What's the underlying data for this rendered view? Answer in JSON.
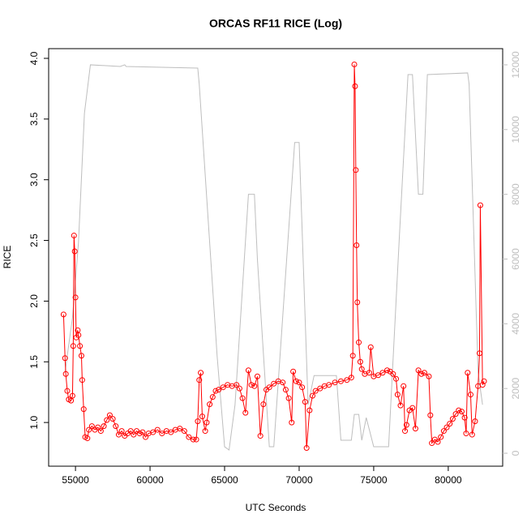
{
  "chart_data": {
    "type": "line",
    "title": "ORCAS RF11 RICE (Log)",
    "x_label": "UTC Seconds",
    "y_label": "RICE",
    "xlim": [
      53200,
      83650
    ],
    "xticks": [
      55000,
      60000,
      65000,
      70000,
      75000,
      80000
    ],
    "ylim": [
      0.64,
      4.08
    ],
    "yticks": [
      {
        "value": 1,
        "label": "1.0"
      },
      {
        "value": 1.5,
        "label": "1.5"
      },
      {
        "value": 2,
        "label": "2.0"
      },
      {
        "value": 2.5,
        "label": "2.5"
      },
      {
        "value": 3,
        "label": "3.0"
      },
      {
        "value": 3.5,
        "label": "3.5"
      },
      {
        "value": 4,
        "label": "4.0"
      }
    ],
    "y2lim": [
      -400,
      12500
    ],
    "y2ticks": [
      0,
      2000,
      4000,
      6000,
      8000,
      10000,
      12000
    ],
    "y2_color": "#bebebe",
    "series": [
      {
        "color": "#ff0000",
        "markers": true,
        "x": [
          54200,
          54300,
          54350,
          54450,
          54550,
          54700,
          54800,
          54850,
          54900,
          54950,
          55000,
          55050,
          55150,
          55200,
          55300,
          55400,
          55450,
          55550,
          55650,
          55800,
          55900,
          56100,
          56300,
          56500,
          56700,
          56900,
          57100,
          57300,
          57500,
          57700,
          57900,
          58100,
          58300,
          58500,
          58700,
          58900,
          59100,
          59300,
          59500,
          59700,
          59900,
          60200,
          60500,
          60800,
          61100,
          61400,
          61700,
          62000,
          62300,
          62600,
          62900,
          63100,
          63200,
          63300,
          63400,
          63500,
          63700,
          63800,
          64000,
          64200,
          64400,
          64600,
          64900,
          65200,
          65500,
          65800,
          66000,
          66200,
          66400,
          66600,
          66800,
          67000,
          67200,
          67400,
          67600,
          67800,
          68000,
          68300,
          68600,
          68900,
          69100,
          69300,
          69500,
          69600,
          69800,
          70000,
          70200,
          70400,
          70500,
          70700,
          70900,
          71100,
          71400,
          71700,
          72000,
          72400,
          72800,
          73200,
          73500,
          73600,
          73700,
          73750,
          73800,
          73850,
          73900,
          74000,
          74100,
          74200,
          74400,
          74700,
          74800,
          75000,
          75300,
          75600,
          75900,
          76100,
          76300,
          76500,
          76600,
          76800,
          77000,
          77100,
          77200,
          77400,
          77600,
          77800,
          78000,
          78200,
          78400,
          78700,
          78800,
          78900,
          79100,
          79300,
          79500,
          79700,
          79900,
          80100,
          80300,
          80500,
          80700,
          80900,
          81100,
          81200,
          81300,
          81500,
          81600,
          81800,
          82000,
          82100,
          82150,
          82300,
          82400
        ],
        "values": [
          1.89,
          1.53,
          1.4,
          1.26,
          1.19,
          1.18,
          1.22,
          1.63,
          2.54,
          2.41,
          2.03,
          1.7,
          1.76,
          1.72,
          1.63,
          1.55,
          1.35,
          1.11,
          0.88,
          0.87,
          0.94,
          0.97,
          0.94,
          0.96,
          0.93,
          0.97,
          1.02,
          1.06,
          1.03,
          0.97,
          0.9,
          0.93,
          0.89,
          0.91,
          0.93,
          0.9,
          0.93,
          0.91,
          0.92,
          0.88,
          0.91,
          0.92,
          0.94,
          0.91,
          0.93,
          0.92,
          0.94,
          0.95,
          0.93,
          0.88,
          0.86,
          0.86,
          1.01,
          1.35,
          1.41,
          1.05,
          0.93,
          1.0,
          1.15,
          1.21,
          1.26,
          1.27,
          1.29,
          1.31,
          1.3,
          1.31,
          1.28,
          1.2,
          1.08,
          1.43,
          1.31,
          1.3,
          1.38,
          0.89,
          1.15,
          1.27,
          1.29,
          1.32,
          1.34,
          1.33,
          1.27,
          1.2,
          1.0,
          1.42,
          1.34,
          1.33,
          1.29,
          1.17,
          0.79,
          1.1,
          1.22,
          1.26,
          1.28,
          1.3,
          1.31,
          1.33,
          1.34,
          1.35,
          1.37,
          1.55,
          3.95,
          3.77,
          3.08,
          2.46,
          1.99,
          1.66,
          1.5,
          1.44,
          1.4,
          1.41,
          1.62,
          1.38,
          1.39,
          1.41,
          1.43,
          1.42,
          1.4,
          1.36,
          1.23,
          1.14,
          1.3,
          0.93,
          0.98,
          1.1,
          1.12,
          0.95,
          1.43,
          1.4,
          1.41,
          1.38,
          1.06,
          0.83,
          0.86,
          0.84,
          0.88,
          0.93,
          0.96,
          0.99,
          1.03,
          1.07,
          1.1,
          1.09,
          1.04,
          0.91,
          1.41,
          1.23,
          0.9,
          1.01,
          1.3,
          1.57,
          2.79,
          1.31,
          1.34
        ]
      },
      {
        "color": "#bebebe",
        "axis": "y2",
        "x": [
          54300,
          54800,
          55200,
          55600,
          56000,
          58000,
          58300,
          58400,
          63200,
          63300,
          64500,
          65000,
          65300,
          65700,
          66600,
          66800,
          67000,
          67200,
          68000,
          68300,
          69700,
          70000,
          70600,
          71000,
          72500,
          72800,
          73500,
          73700,
          74000,
          74200,
          74500,
          75000,
          76000,
          76700,
          77300,
          77600,
          78000,
          78300,
          78600,
          81300,
          81400,
          82000,
          82300
        ],
        "values": [
          2500,
          4200,
          6500,
          10500,
          12000,
          11950,
          12000,
          11950,
          11900,
          11400,
          3000,
          200,
          100,
          1500,
          8000,
          8000,
          8000,
          6000,
          200,
          200,
          9600,
          9600,
          1500,
          2400,
          2400,
          400,
          400,
          1200,
          1200,
          400,
          1100,
          200,
          200,
          6500,
          11700,
          11700,
          8000,
          8000,
          11700,
          11750,
          11400,
          2500,
          1500
        ]
      }
    ]
  }
}
